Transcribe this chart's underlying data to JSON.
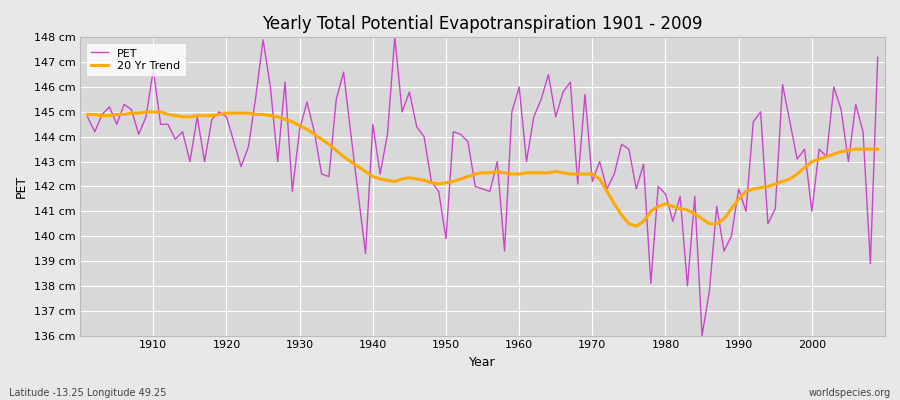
{
  "title": "Yearly Total Potential Evapotranspiration 1901 - 2009",
  "xlabel": "Year",
  "ylabel": "PET",
  "footnote_left": "Latitude -13.25 Longitude 49.25",
  "footnote_right": "worldspecies.org",
  "legend_pet": "PET",
  "legend_trend": "20 Yr Trend",
  "pet_color": "#cc44cc",
  "trend_color": "#ffaa00",
  "bg_color": "#e8e8e8",
  "plot_bg_color": "#d8d8d8",
  "grid_color": "#ffffff",
  "ylim_min": 136,
  "ylim_max": 148,
  "years": [
    1901,
    1902,
    1903,
    1904,
    1905,
    1906,
    1907,
    1908,
    1909,
    1910,
    1911,
    1912,
    1913,
    1914,
    1915,
    1916,
    1917,
    1918,
    1919,
    1920,
    1921,
    1922,
    1923,
    1924,
    1925,
    1926,
    1927,
    1928,
    1929,
    1930,
    1931,
    1932,
    1933,
    1934,
    1935,
    1936,
    1937,
    1938,
    1939,
    1940,
    1941,
    1942,
    1943,
    1944,
    1945,
    1946,
    1947,
    1948,
    1949,
    1950,
    1951,
    1952,
    1953,
    1954,
    1955,
    1956,
    1957,
    1958,
    1959,
    1960,
    1961,
    1962,
    1963,
    1964,
    1965,
    1966,
    1967,
    1968,
    1969,
    1970,
    1971,
    1972,
    1973,
    1974,
    1975,
    1976,
    1977,
    1978,
    1979,
    1980,
    1981,
    1982,
    1983,
    1984,
    1985,
    1986,
    1987,
    1988,
    1989,
    1990,
    1991,
    1992,
    1993,
    1994,
    1995,
    1996,
    1997,
    1998,
    1999,
    2000,
    2001,
    2002,
    2003,
    2004,
    2005,
    2006,
    2007,
    2008,
    2009
  ],
  "pet_values": [
    144.8,
    144.2,
    144.9,
    145.2,
    144.5,
    145.3,
    145.1,
    144.1,
    144.8,
    146.7,
    144.5,
    144.5,
    143.9,
    144.2,
    143.0,
    144.8,
    143.0,
    144.7,
    145.0,
    144.8,
    143.8,
    142.8,
    143.6,
    145.6,
    147.9,
    146.0,
    143.0,
    146.2,
    141.8,
    144.3,
    145.4,
    144.2,
    142.5,
    142.4,
    145.5,
    146.6,
    144.1,
    141.7,
    139.3,
    144.5,
    142.5,
    144.1,
    148.0,
    145.0,
    145.8,
    144.4,
    144.0,
    142.2,
    141.8,
    139.9,
    144.2,
    144.1,
    143.8,
    142.0,
    141.9,
    141.8,
    143.0,
    139.4,
    145.0,
    146.0,
    143.0,
    144.8,
    145.5,
    146.5,
    144.8,
    145.8,
    146.2,
    142.1,
    145.7,
    142.2,
    143.0,
    141.9,
    142.5,
    143.7,
    143.5,
    141.9,
    142.9,
    138.1,
    142.0,
    141.7,
    140.6,
    141.6,
    138.0,
    141.6,
    136.0,
    137.8,
    141.2,
    139.4,
    140.0,
    141.9,
    141.0,
    144.6,
    145.0,
    140.5,
    141.1,
    146.1,
    144.6,
    143.1,
    143.5,
    141.0,
    143.5,
    143.2,
    146.0,
    145.1,
    143.0,
    145.3,
    144.2,
    138.9,
    147.2
  ],
  "trend_values": [
    144.9,
    144.9,
    144.85,
    144.85,
    144.9,
    144.9,
    144.95,
    144.95,
    145.0,
    145.0,
    145.0,
    144.9,
    144.85,
    144.8,
    144.8,
    144.85,
    144.85,
    144.85,
    144.9,
    144.95,
    144.95,
    144.95,
    144.95,
    144.9,
    144.9,
    144.85,
    144.8,
    144.7,
    144.6,
    144.45,
    144.3,
    144.1,
    143.9,
    143.7,
    143.45,
    143.2,
    143.0,
    142.8,
    142.6,
    142.4,
    142.3,
    142.25,
    142.2,
    142.3,
    142.35,
    142.3,
    142.25,
    142.15,
    142.1,
    142.15,
    142.2,
    142.3,
    142.4,
    142.5,
    142.55,
    142.55,
    142.6,
    142.55,
    142.5,
    142.5,
    142.55,
    142.55,
    142.55,
    142.55,
    142.6,
    142.55,
    142.5,
    142.5,
    142.5,
    142.5,
    142.3,
    141.8,
    141.3,
    140.85,
    140.5,
    140.4,
    140.6,
    141.0,
    141.2,
    141.3,
    141.2,
    141.1,
    141.05,
    140.9,
    140.7,
    140.5,
    140.5,
    140.7,
    141.1,
    141.5,
    141.8,
    141.9,
    141.95,
    142.0,
    142.1,
    142.2,
    142.3,
    142.5,
    142.75,
    143.0,
    143.1,
    143.2,
    143.3,
    143.4,
    143.45,
    143.5,
    143.5,
    143.5,
    143.5
  ],
  "xticks": [
    1910,
    1920,
    1930,
    1940,
    1950,
    1960,
    1970,
    1980,
    1990,
    2000
  ]
}
